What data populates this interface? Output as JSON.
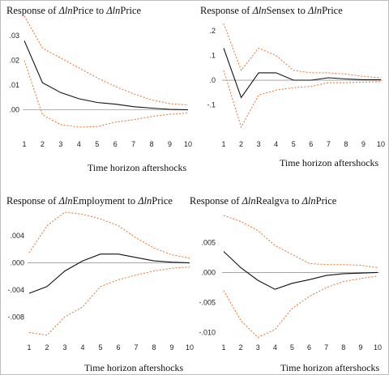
{
  "chart_data": [
    {
      "type": "line",
      "title_parts": [
        "Response of ",
        "Δln",
        "Price to ",
        "Δln",
        "Price"
      ],
      "xlabel": "Time horizon aftershocks",
      "x": [
        1,
        2,
        3,
        4,
        5,
        6,
        7,
        8,
        9,
        10
      ],
      "x_ticks": [
        "1",
        "2",
        "3",
        "4",
        "5",
        "6",
        "7",
        "8",
        "9",
        "10"
      ],
      "y_ticks": [
        ".03",
        ".02",
        ".01",
        ".00"
      ],
      "y_tick_values": [
        0.03,
        0.02,
        0.01,
        0.0
      ],
      "ylim": [
        -0.008,
        0.034
      ],
      "series": [
        {
          "role": "response",
          "values": [
            0.028,
            0.011,
            0.007,
            0.0045,
            0.003,
            0.0023,
            0.0013,
            0.0007,
            0.0002,
            0.0
          ]
        },
        {
          "role": "upper_band",
          "values": [
            0.038,
            0.025,
            0.021,
            0.017,
            0.013,
            0.0095,
            0.0065,
            0.004,
            0.0025,
            0.002
          ]
        },
        {
          "role": "lower_band",
          "values": [
            0.02,
            -0.002,
            -0.006,
            -0.007,
            -0.0068,
            -0.005,
            -0.004,
            -0.0027,
            -0.0018,
            -0.0013
          ]
        }
      ]
    },
    {
      "type": "line",
      "title_parts": [
        "Response of ",
        "Δln",
        "Sensex to ",
        "Δln",
        "Price"
      ],
      "xlabel": "Time horizon aftershocks",
      "x": [
        1,
        2,
        3,
        4,
        5,
        6,
        7,
        8,
        9,
        10
      ],
      "x_ticks": [
        "1",
        "2",
        "3",
        "4",
        "5",
        "6",
        "7",
        "8",
        "9",
        "10"
      ],
      "y_ticks": [
        ".2",
        ".1",
        ".0",
        "-.1"
      ],
      "y_tick_values": [
        0.2,
        0.1,
        0.0,
        -0.1
      ],
      "ylim": [
        -0.2,
        0.22
      ],
      "series": [
        {
          "role": "response",
          "values": [
            0.13,
            -0.07,
            0.03,
            0.03,
            0.0,
            0.0,
            0.01,
            0.005,
            0.002,
            0.002
          ]
        },
        {
          "role": "upper_band",
          "values": [
            0.23,
            0.04,
            0.13,
            0.1,
            0.04,
            0.03,
            0.03,
            0.025,
            0.015,
            0.01
          ]
        },
        {
          "role": "lower_band",
          "values": [
            0.04,
            -0.19,
            -0.06,
            -0.04,
            -0.03,
            -0.025,
            -0.01,
            -0.01,
            -0.008,
            -0.005
          ]
        }
      ]
    },
    {
      "type": "line",
      "title_parts": [
        "Response of ",
        "Δln",
        "Employment to ",
        "Δln",
        "Price"
      ],
      "xlabel": "Time horizon aftershocks",
      "x": [
        1,
        2,
        3,
        4,
        5,
        6,
        7,
        8,
        9,
        10
      ],
      "x_ticks": [
        "1",
        "2",
        "3",
        "4",
        "5",
        "6",
        "7",
        "8",
        "9",
        "10"
      ],
      "y_ticks": [
        ".004",
        ".000",
        "-.004",
        "-.008"
      ],
      "y_tick_values": [
        0.004,
        0.0,
        -0.004,
        -0.008
      ],
      "ylim": [
        -0.0112,
        0.0075
      ],
      "series": [
        {
          "role": "response",
          "values": [
            -0.0045,
            -0.0035,
            -0.0012,
            0.0003,
            0.0013,
            0.0013,
            0.0008,
            0.0003,
            0.0001,
            0.0
          ]
        },
        {
          "role": "upper_band",
          "values": [
            0.0015,
            0.0055,
            0.0075,
            0.0072,
            0.0065,
            0.0055,
            0.0037,
            0.0022,
            0.0012,
            0.0007
          ]
        },
        {
          "role": "lower_band",
          "values": [
            -0.0103,
            -0.0107,
            -0.008,
            -0.0065,
            -0.0035,
            -0.0025,
            -0.0018,
            -0.0012,
            -0.0008,
            -0.0006
          ]
        }
      ]
    },
    {
      "type": "line",
      "title_parts": [
        "Response of ",
        "Δln",
        "Realgva to ",
        "Δln",
        "Price"
      ],
      "xlabel": "Time horizon aftershocks",
      "x": [
        1,
        2,
        3,
        4,
        5,
        6,
        7,
        8,
        9,
        10
      ],
      "x_ticks": [
        "1",
        "2",
        "3",
        "4",
        "5",
        "6",
        "7",
        "8",
        "9",
        "10"
      ],
      "y_ticks": [
        ".005",
        ".000",
        "-.005",
        "-.010"
      ],
      "y_tick_values": [
        0.005,
        0.0,
        -0.005,
        -0.01
      ],
      "ylim": [
        -0.011,
        0.0095
      ],
      "series": [
        {
          "role": "response",
          "values": [
            0.0035,
            0.0008,
            -0.0013,
            -0.0028,
            -0.0018,
            -0.0012,
            -0.0005,
            -0.0002,
            -0.0001,
            0.0
          ]
        },
        {
          "role": "upper_band",
          "values": [
            0.0095,
            0.0085,
            0.007,
            0.0045,
            0.003,
            0.0015,
            0.0013,
            0.0013,
            0.0012,
            0.0008
          ]
        },
        {
          "role": "lower_band",
          "values": [
            -0.003,
            -0.008,
            -0.0108,
            -0.0095,
            -0.006,
            -0.004,
            -0.0025,
            -0.0015,
            -0.001,
            -0.0006
          ]
        }
      ]
    }
  ]
}
